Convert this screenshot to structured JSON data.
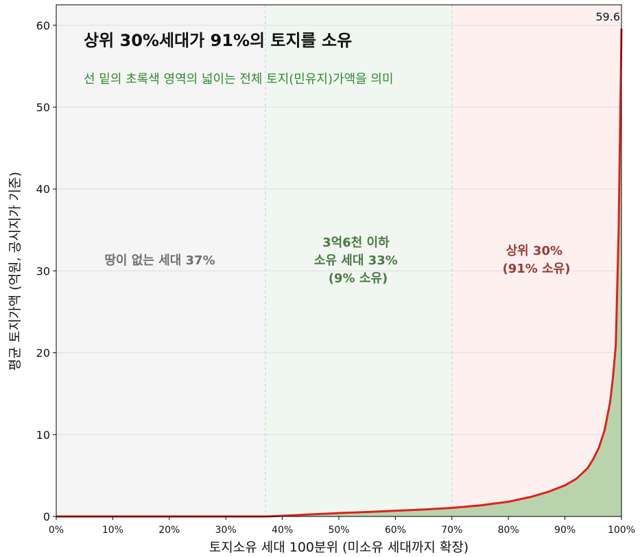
{
  "chart_data": {
    "type": "area",
    "title": "상위 30%세대가 91%의 토지를 소유",
    "subtitle": "선 밑의 초록색 영역의 넓이는 전체 토지(민유지)가액을 의미",
    "xlabel": "토지소유 세대 100분위 (미소유 세대까지 확장)",
    "ylabel": "평균 토지가액 (억원, 공시지가 기준)",
    "xlim": [
      0,
      100
    ],
    "ylim": [
      0,
      62.5
    ],
    "xticks": [
      0,
      10,
      20,
      30,
      40,
      50,
      60,
      70,
      80,
      90,
      100
    ],
    "xtick_labels": [
      "0%",
      "10%",
      "20%",
      "30%",
      "40%",
      "50%",
      "60%",
      "70%",
      "80%",
      "90%",
      "100%"
    ],
    "yticks": [
      0,
      10,
      20,
      30,
      40,
      50,
      60
    ],
    "ytick_labels": [
      "0",
      "10",
      "20",
      "30",
      "40",
      "50",
      "60"
    ],
    "grid": "horizontal",
    "regions": [
      {
        "x0": 0,
        "x1": 37,
        "label": "땅이 없는 세대 37%",
        "color": "#f5f5f5",
        "text_color": "#707070"
      },
      {
        "x0": 37,
        "x1": 70,
        "label_lines": [
          "3억6천 이하",
          "소유 세대 33%",
          "(9% 소유)"
        ],
        "color": "#f0f7f1",
        "text_color": "#4a7a45"
      },
      {
        "x0": 70,
        "x1": 100,
        "label_lines": [
          "상위 30%",
          "(91% 소유)"
        ],
        "color": "#fff0f0",
        "text_color": "#9a3b35"
      }
    ],
    "max_label": "59.6",
    "series": [
      {
        "x": [
          0,
          37,
          38,
          40,
          42,
          45,
          48,
          50,
          55,
          60,
          65,
          70,
          75,
          80,
          84,
          87,
          90,
          92,
          94,
          95,
          96,
          97,
          98,
          98.5,
          99,
          99.5,
          100
        ],
        "values": [
          0,
          0,
          0.02,
          0.08,
          0.15,
          0.25,
          0.35,
          0.42,
          0.55,
          0.7,
          0.85,
          1.05,
          1.35,
          1.8,
          2.4,
          3.0,
          3.8,
          4.6,
          5.9,
          7.0,
          8.4,
          10.5,
          14.0,
          17.0,
          21.0,
          35.0,
          59.6
        ]
      }
    ],
    "colors": {
      "line": "#e0201b",
      "fill": "#b9d4ad",
      "grid": "#dcdcdc",
      "divider": "#c8c8c8",
      "title": "#111111",
      "subtitle": "#2e8b2e"
    }
  }
}
